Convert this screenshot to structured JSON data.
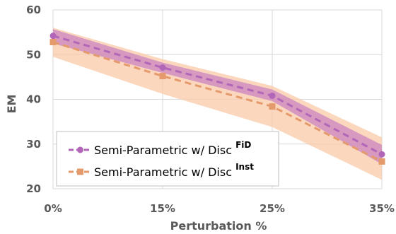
{
  "chart_data": {
    "type": "line",
    "title": "",
    "xlabel": "Perturbation %",
    "ylabel": "EM",
    "categories": [
      "0%",
      "15%",
      "25%",
      "35%"
    ],
    "ylim": [
      20,
      60
    ],
    "yticks": [
      20,
      30,
      40,
      50,
      60
    ],
    "grid": true,
    "legend_position": "bottom-left",
    "series": [
      {
        "name": "Semi-Parametric w/ Disc",
        "name_sup": "FiD",
        "color": "#b266b8",
        "band_color": "#c77fc0",
        "marker": "circle",
        "values": [
          54.2,
          47.1,
          40.8,
          27.7
        ],
        "band_lower": [
          52.5,
          45.9,
          39.6,
          25.5
        ],
        "band_upper": [
          55.7,
          48.2,
          42.2,
          29.8
        ]
      },
      {
        "name": "Semi-Parametric w/ Disc",
        "name_sup": "Inst",
        "color": "#e59a6b",
        "band_color": "#f9c9a8",
        "marker": "square",
        "values": [
          52.8,
          45.2,
          38.4,
          26.1
        ],
        "band_lower": [
          49.5,
          41.2,
          33.8,
          22.0
        ],
        "band_upper": [
          56.0,
          49.0,
          43.0,
          31.5
        ]
      }
    ]
  }
}
